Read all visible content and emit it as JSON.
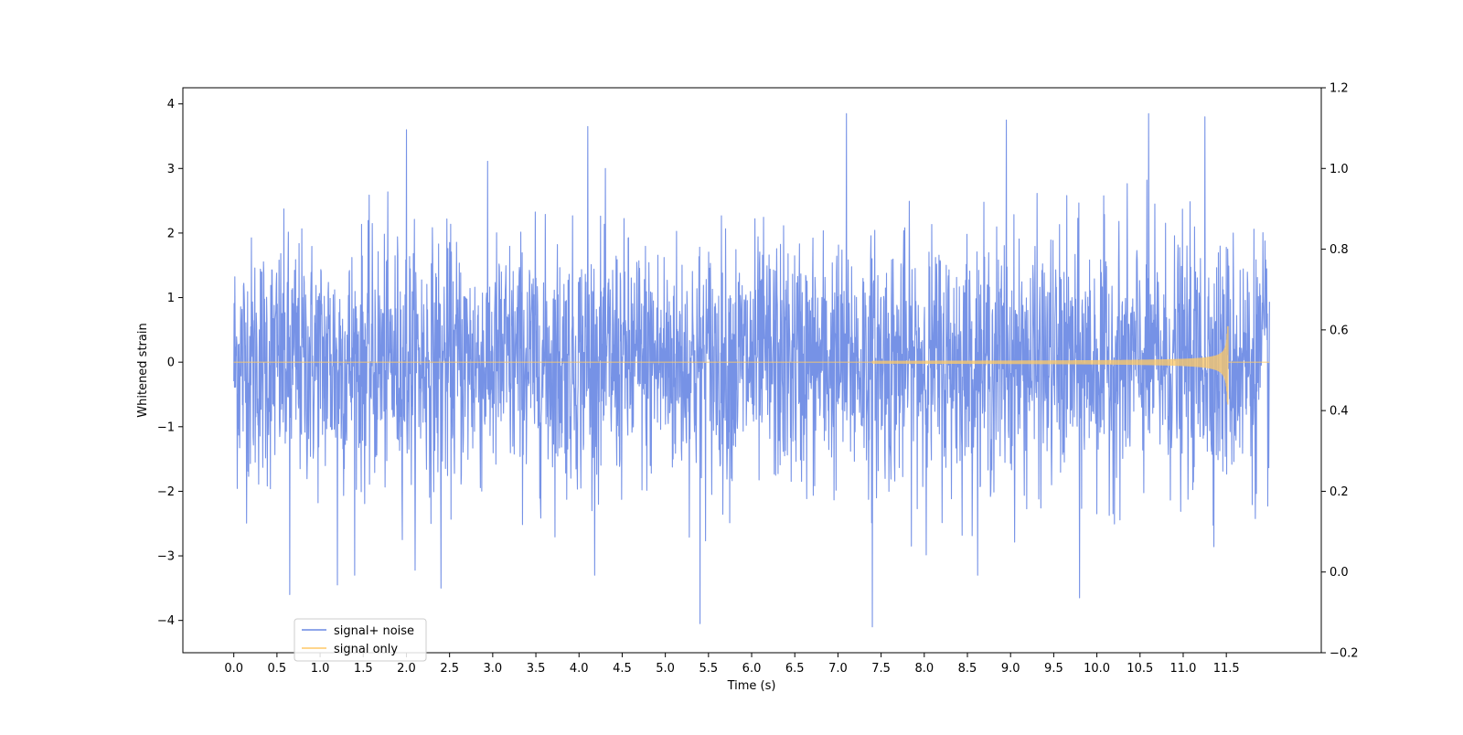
{
  "chart_data": {
    "type": "line",
    "title": "",
    "xlabel": "Time (s)",
    "ylabel": "Whitened strain",
    "y2label": "",
    "xlim": [
      -0.59,
      12.6
    ],
    "ylim": [
      -4.5,
      4.25
    ],
    "y2lim": [
      -0.2,
      1.2
    ],
    "x_ticks": [
      0.0,
      0.5,
      1.0,
      1.5,
      2.0,
      2.5,
      3.0,
      3.5,
      4.0,
      4.5,
      5.0,
      5.5,
      6.0,
      6.5,
      7.0,
      7.5,
      8.0,
      8.5,
      9.0,
      9.5,
      10.0,
      10.5,
      11.0,
      11.5
    ],
    "x_tick_labels": [
      "0.0",
      "0.5",
      "1.0",
      "1.5",
      "2.0",
      "2.5",
      "3.0",
      "3.5",
      "4.0",
      "4.5",
      "5.0",
      "5.5",
      "6.0",
      "6.5",
      "7.0",
      "7.5",
      "8.0",
      "8.5",
      "9.0",
      "9.5",
      "10.0",
      "10.5",
      "11.0",
      "11.5"
    ],
    "y_ticks": [
      -4,
      -3,
      -2,
      -1,
      0,
      1,
      2,
      3,
      4
    ],
    "y_tick_labels": [
      "−4",
      "−3",
      "−2",
      "−1",
      "0",
      "1",
      "2",
      "3",
      "4"
    ],
    "y2_ticks": [
      -0.2,
      0.0,
      0.2,
      0.4,
      0.6,
      0.8,
      1.0,
      1.2
    ],
    "y2_tick_labels": [
      "−0.2",
      "0.0",
      "0.2",
      "0.4",
      "0.6",
      "0.8",
      "1.0",
      "1.2"
    ],
    "grid": false,
    "legend_position": "lower-left",
    "series": [
      {
        "name": "signal+ noise",
        "color": "#6a89e4",
        "x_range": [
          0.0,
          12.0
        ],
        "sample_count": 3000,
        "typical_range": [
          -1.5,
          1.5
        ],
        "max": 3.85,
        "min": -4.1,
        "notable_peaks": [
          {
            "x": 2.0,
            "y": 3.6
          },
          {
            "x": 4.1,
            "y": 3.65
          },
          {
            "x": 7.1,
            "y": 3.85
          },
          {
            "x": 8.95,
            "y": 3.75
          },
          {
            "x": 10.6,
            "y": 3.85
          },
          {
            "x": 11.25,
            "y": 3.8
          },
          {
            "x": 0.65,
            "y": -3.6
          },
          {
            "x": 5.4,
            "y": -4.05
          },
          {
            "x": 7.4,
            "y": -4.1
          },
          {
            "x": 9.8,
            "y": -3.65
          },
          {
            "x": 1.2,
            "y": -3.45
          },
          {
            "x": 2.4,
            "y": -3.5
          }
        ]
      },
      {
        "name": "signal only",
        "color": "#ffc966",
        "x_range": [
          0.0,
          12.0
        ],
        "chirp_end_x": 11.52,
        "peak_amplitude": 0.55,
        "trough_amplitude": -0.65
      }
    ]
  }
}
